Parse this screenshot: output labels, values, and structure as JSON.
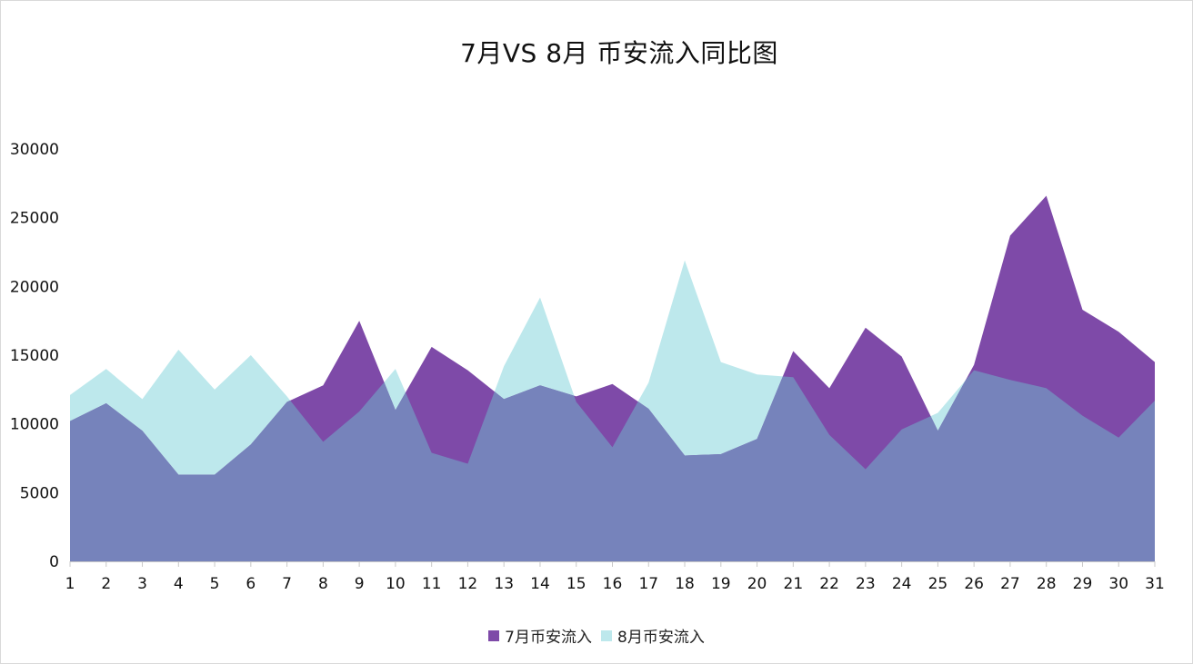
{
  "chart_data": {
    "type": "area",
    "title": "7月VS 8月 币安流入同比图",
    "xlabel": "",
    "ylabel": "",
    "categories": [
      "1",
      "2",
      "3",
      "4",
      "5",
      "6",
      "7",
      "8",
      "9",
      "10",
      "11",
      "12",
      "13",
      "14",
      "15",
      "16",
      "17",
      "18",
      "19",
      "20",
      "21",
      "22",
      "23",
      "24",
      "25",
      "26",
      "27",
      "28",
      "29",
      "30",
      "31"
    ],
    "ylim": [
      0,
      30000
    ],
    "yticks": [
      0,
      5000,
      10000,
      15000,
      20000,
      25000,
      30000
    ],
    "grid": false,
    "legend_position": "bottom",
    "series": [
      {
        "name": "7月币安流入",
        "color": "#7e4aa8",
        "values": [
          10200,
          11500,
          9500,
          6300,
          6300,
          8500,
          11600,
          12800,
          17500,
          11000,
          15600,
          13900,
          11800,
          12800,
          12000,
          12900,
          11100,
          7700,
          7800,
          8900,
          15300,
          12600,
          17000,
          14900,
          9500,
          14300,
          23700,
          26600,
          18300,
          16700,
          14500
        ]
      },
      {
        "name": "8月币安流入",
        "color": "#bde8ec",
        "values": [
          12100,
          14000,
          11800,
          15400,
          12500,
          15000,
          12000,
          8700,
          10900,
          14000,
          7900,
          7100,
          14200,
          19200,
          11600,
          8300,
          13000,
          21900,
          14500,
          13600,
          13400,
          9200,
          6700,
          9600,
          10800,
          13900,
          13200,
          12600,
          10600,
          9000,
          11700
        ]
      }
    ],
    "overlap_color": "#7683bb"
  }
}
